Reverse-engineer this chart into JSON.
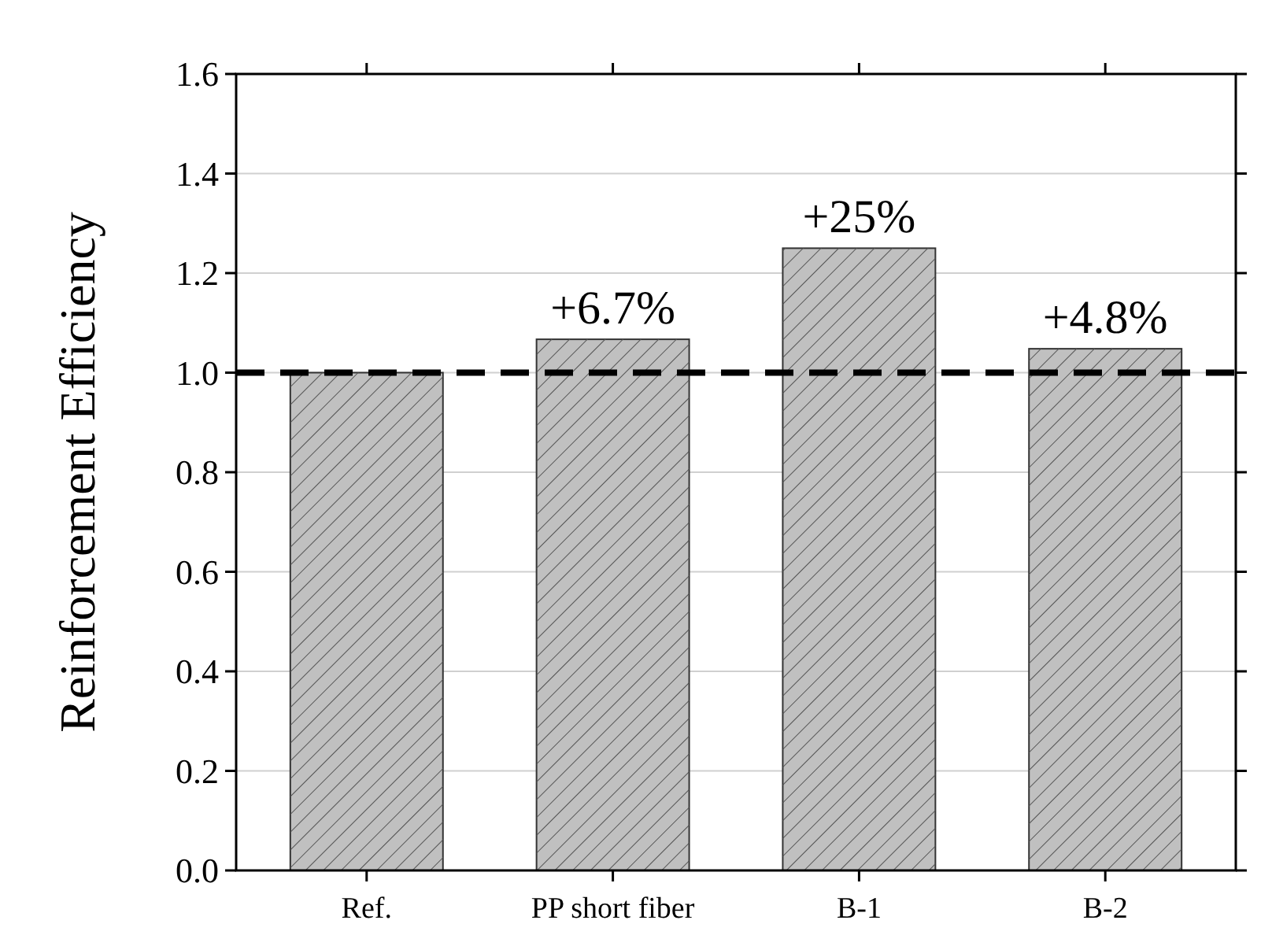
{
  "chart_data": {
    "type": "bar",
    "ylabel": "Reinforcement Efficiency",
    "categories": [
      "Ref.",
      "PP short fiber",
      "B-1",
      "B-2"
    ],
    "values": [
      1.0,
      1.067,
      1.25,
      1.048
    ],
    "annotations": [
      {
        "text": "+6.7%",
        "x": "PP short fiber",
        "y": 1.067
      },
      {
        "text": "+25%",
        "x": "B-1",
        "y": 1.25
      },
      {
        "text": "+4.8%",
        "x": "B-2",
        "y": 1.048
      }
    ],
    "color": "#c0c0c0",
    "ylim": [
      0,
      1.6
    ],
    "yticks": [
      {
        "value": 0,
        "label": "0.0"
      },
      0.2,
      0.4,
      0.6,
      0.8,
      {
        "value": 1,
        "label": "1.0"
      },
      1.2,
      1.4,
      1.6
    ],
    "grid": "y",
    "ref_lines": [
      {
        "axis": "y",
        "value": 1.0,
        "color": "#000000",
        "line_style": "dashed"
      }
    ]
  }
}
